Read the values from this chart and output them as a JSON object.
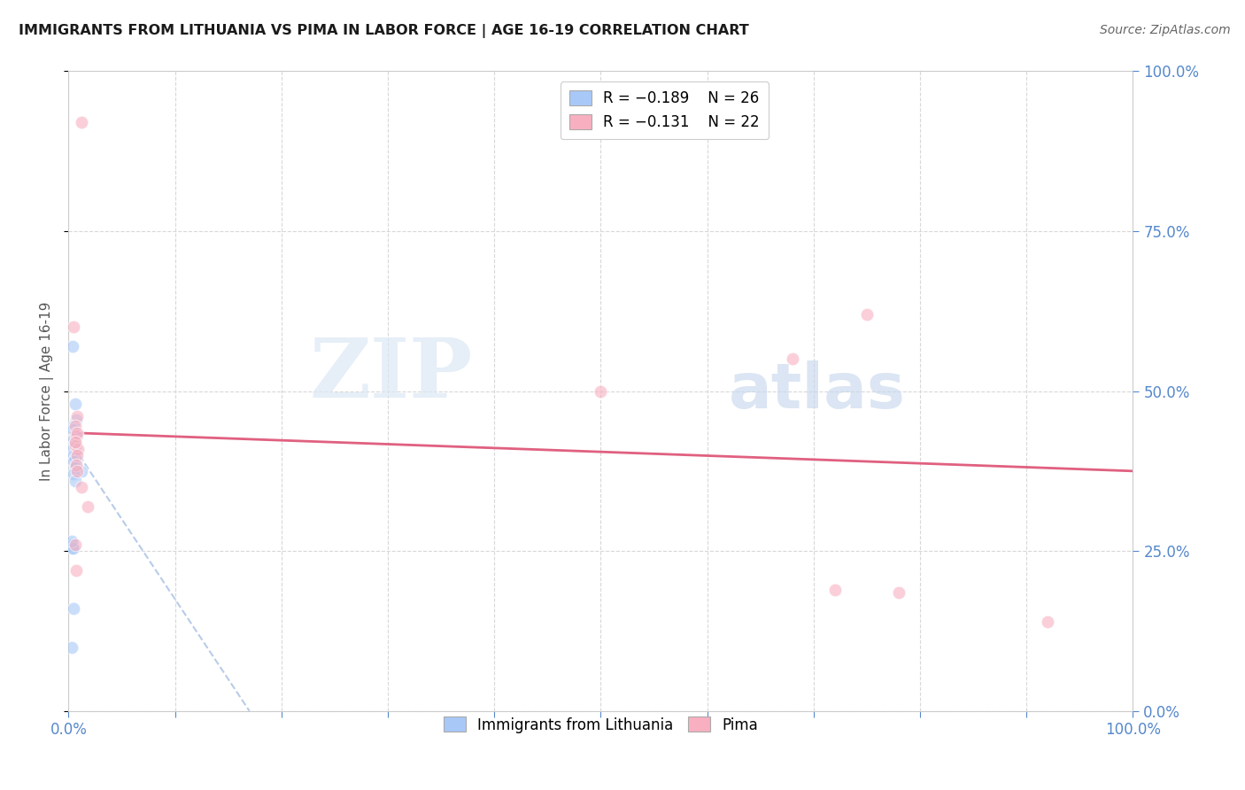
{
  "title": "IMMIGRANTS FROM LITHUANIA VS PIMA IN LABOR FORCE | AGE 16-19 CORRELATION CHART",
  "source": "Source: ZipAtlas.com",
  "ylabel": "In Labor Force | Age 16-19",
  "xlim": [
    0.0,
    1.0
  ],
  "ylim": [
    0.0,
    1.0
  ],
  "xticks": [
    0.0,
    0.1,
    0.2,
    0.3,
    0.4,
    0.5,
    0.6,
    0.7,
    0.8,
    0.9,
    1.0
  ],
  "xtick_labels_show": [
    "0.0%",
    "",
    "",
    "",
    "",
    "",
    "",
    "",
    "",
    "",
    "100.0%"
  ],
  "yticks": [
    0.0,
    0.25,
    0.5,
    0.75,
    1.0
  ],
  "ytick_labels": [
    "0.0%",
    "25.0%",
    "50.0%",
    "75.0%",
    "100.0%"
  ],
  "background_color": "#ffffff",
  "grid_color": "#d8d8d8",
  "watermark_zip": "ZIP",
  "watermark_atlas": "atlas",
  "blue_points_x": [
    0.004,
    0.006,
    0.007,
    0.005,
    0.004,
    0.006,
    0.008,
    0.005,
    0.006,
    0.005,
    0.004,
    0.007,
    0.005,
    0.006,
    0.005,
    0.007,
    0.006,
    0.012,
    0.005,
    0.006,
    0.004,
    0.005,
    0.005,
    0.003,
    0.004,
    0.003
  ],
  "blue_points_y": [
    0.57,
    0.48,
    0.455,
    0.445,
    0.44,
    0.435,
    0.43,
    0.425,
    0.42,
    0.415,
    0.41,
    0.405,
    0.4,
    0.395,
    0.39,
    0.385,
    0.38,
    0.375,
    0.37,
    0.36,
    0.26,
    0.255,
    0.16,
    0.1,
    0.255,
    0.265
  ],
  "pink_points_x": [
    0.012,
    0.005,
    0.008,
    0.006,
    0.007,
    0.006,
    0.009,
    0.008,
    0.007,
    0.008,
    0.012,
    0.018,
    0.006,
    0.007,
    0.5,
    0.68,
    0.75,
    0.72,
    0.78,
    0.92,
    0.008,
    0.006
  ],
  "pink_points_y": [
    0.92,
    0.6,
    0.46,
    0.445,
    0.43,
    0.415,
    0.41,
    0.4,
    0.385,
    0.375,
    0.35,
    0.32,
    0.26,
    0.22,
    0.5,
    0.55,
    0.62,
    0.19,
    0.185,
    0.14,
    0.435,
    0.42
  ],
  "blue_color": "#a8c8f8",
  "pink_color": "#f8b0c0",
  "pink_line_color": "#e06080",
  "blue_dash_color": "#b8cce8",
  "legend_R_blue": "R = −0.189",
  "legend_N_blue": "N = 26",
  "legend_R_pink": "R = −0.131",
  "legend_N_pink": "N = 22",
  "blue_trend_x0": 0.0,
  "blue_trend_y0": 0.425,
  "blue_trend_x1": 0.17,
  "blue_trend_y1": 0.0,
  "pink_trend_x0": 0.0,
  "pink_trend_y0": 0.435,
  "pink_trend_x1": 1.0,
  "pink_trend_y1": 0.375,
  "marker_size": 110,
  "alpha": 0.6,
  "tick_color": "#5588cc",
  "label_color": "#5588cc"
}
